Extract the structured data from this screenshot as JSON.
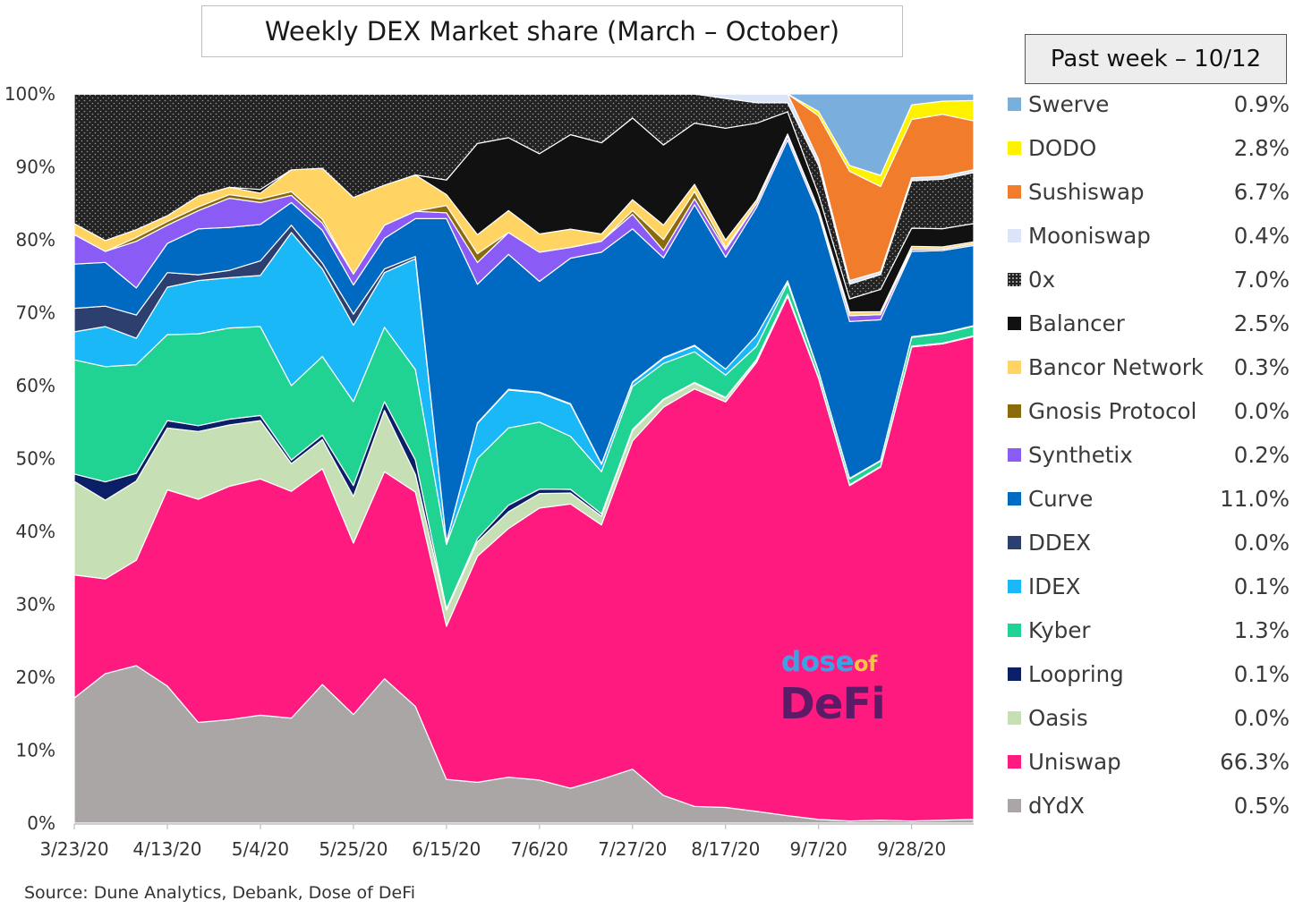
{
  "chart_data": {
    "type": "area",
    "stacked": true,
    "title": "Weekly DEX Market share (March – October)",
    "ylim": [
      0,
      100
    ],
    "y_ticks": [
      "0%",
      "10%",
      "20%",
      "30%",
      "40%",
      "50%",
      "60%",
      "70%",
      "80%",
      "90%",
      "100%"
    ],
    "x_tick_labels": [
      "3/23/20",
      "4/13/20",
      "5/4/20",
      "5/25/20",
      "6/15/20",
      "7/6/20",
      "7/27/20",
      "8/17/20",
      "9/7/20",
      "9/28/20"
    ],
    "x": [
      "3/23/20",
      "3/30/20",
      "4/6/20",
      "4/13/20",
      "4/20/20",
      "4/27/20",
      "5/4/20",
      "5/11/20",
      "5/18/20",
      "5/25/20",
      "6/1/20",
      "6/8/20",
      "6/15/20",
      "6/22/20",
      "6/29/20",
      "7/6/20",
      "7/13/20",
      "7/20/20",
      "7/27/20",
      "8/3/20",
      "8/10/20",
      "8/17/20",
      "8/24/20",
      "8/31/20",
      "9/7/20",
      "9/14/20",
      "9/21/20",
      "9/28/20",
      "10/5/20",
      "10/12/20"
    ],
    "series": [
      {
        "name": "dYdX",
        "color": "#aaa6a6",
        "values": [
          17.0,
          20.5,
          20.3,
          18.8,
          13.8,
          14.2,
          14.8,
          14.4,
          19.0,
          14.9,
          19.8,
          16.0,
          6.0,
          5.6,
          6.3,
          5.9,
          4.8,
          6.0,
          7.4,
          3.8,
          2.3,
          2.1,
          1.6,
          1.0,
          0.5,
          0.3,
          0.4,
          0.3,
          0.4,
          0.5
        ]
      },
      {
        "name": "Uniswap",
        "color": "#ff1a7f",
        "values": [
          16.7,
          13.0,
          13.6,
          26.9,
          30.6,
          32.0,
          32.4,
          31.1,
          29.6,
          23.5,
          28.4,
          29.4,
          21.0,
          31.0,
          34.1,
          37.3,
          39.1,
          34.9,
          45.0,
          53.3,
          57.3,
          54.4,
          61.4,
          70.0,
          60.5,
          46.0,
          47.7,
          65.0,
          65.4,
          66.3
        ]
      },
      {
        "name": "Oasis",
        "color": "#c6dfb4",
        "values": [
          12.7,
          10.8,
          10.2,
          8.5,
          9.3,
          8.4,
          8.0,
          3.8,
          4.0,
          6.4,
          8.4,
          2.4,
          2.2,
          2.0,
          2.3,
          2.0,
          1.5,
          1.2,
          1.4,
          1.0,
          0.8,
          0.5,
          0.3,
          0.2,
          0.0,
          0.0,
          0.0,
          0.0,
          0.0,
          0.0
        ]
      },
      {
        "name": "Loopring",
        "color": "#0a1f66",
        "values": [
          1.0,
          2.5,
          1.0,
          1.0,
          0.8,
          0.8,
          0.7,
          0.5,
          0.6,
          1.5,
          1.2,
          2.0,
          0.2,
          0.4,
          0.9,
          0.6,
          0.5,
          0.3,
          0.2,
          0.1,
          0.1,
          0.1,
          0.1,
          0.1,
          0.1,
          0.1,
          0.1,
          0.1,
          0.1,
          0.1
        ]
      },
      {
        "name": "Kyber",
        "color": "#21d393",
        "values": [
          15.5,
          15.8,
          14.0,
          11.8,
          12.6,
          12.5,
          12.2,
          10.2,
          10.8,
          11.5,
          10.2,
          12.4,
          8.8,
          11.0,
          10.6,
          9.2,
          7.3,
          5.8,
          5.9,
          4.9,
          4.2,
          3.0,
          1.8,
          1.5,
          0.8,
          0.8,
          0.7,
          1.2,
          1.3,
          1.3
        ]
      },
      {
        "name": "IDEX",
        "color": "#1ab8f7",
        "values": [
          3.8,
          5.5,
          3.4,
          6.5,
          7.3,
          6.9,
          7.0,
          21.0,
          12.0,
          10.5,
          7.5,
          15.2,
          0.3,
          4.8,
          5.2,
          4.0,
          4.4,
          1.0,
          0.5,
          0.7,
          0.8,
          0.8,
          1.5,
          0.3,
          0.1,
          0.1,
          0.1,
          0.1,
          0.1,
          0.1
        ]
      },
      {
        "name": "DDEX",
        "color": "#2c3f6e",
        "values": [
          3.2,
          2.8,
          3.0,
          2.0,
          0.8,
          1.0,
          2.0,
          1.0,
          0.8,
          1.5,
          0.5,
          0.3,
          0.1,
          0.1,
          0.1,
          0.1,
          0.1,
          0.1,
          0.1,
          0.1,
          0.1,
          0.0,
          0.0,
          0.0,
          0.0,
          0.0,
          0.0,
          0.0,
          0.0,
          0.0
        ]
      },
      {
        "name": "Curve",
        "color": "#0069c2",
        "values": [
          6.0,
          6.0,
          3.5,
          4.0,
          6.3,
          5.9,
          5.0,
          3.1,
          4.5,
          4.0,
          4.2,
          5.2,
          44.3,
          19.0,
          18.5,
          15.2,
          20.0,
          29.0,
          21.0,
          13.7,
          19.3,
          15.0,
          17.5,
          19.0,
          21.5,
          21.5,
          19.0,
          11.7,
          11.3,
          11.0
        ]
      },
      {
        "name": "Synthetix",
        "color": "#8a5cf5",
        "values": [
          4.0,
          1.5,
          6.0,
          2.5,
          2.5,
          4.0,
          3.0,
          1.0,
          1.0,
          1.5,
          1.8,
          1.0,
          0.8,
          3.0,
          3.0,
          4.0,
          1.5,
          1.5,
          2.0,
          1.0,
          0.8,
          1.0,
          0.5,
          0.5,
          0.5,
          0.8,
          0.7,
          0.3,
          0.2,
          0.2
        ]
      },
      {
        "name": "Gnosis Protocol",
        "color": "#8a6a0a",
        "values": [
          0.0,
          0.0,
          0.5,
          0.5,
          0.5,
          0.5,
          0.5,
          0.5,
          0.5,
          0.0,
          0.0,
          0.0,
          1.0,
          1.2,
          0.0,
          0.0,
          0.0,
          0.0,
          0.5,
          1.5,
          1.0,
          0.3,
          0.0,
          0.0,
          0.0,
          0.0,
          0.0,
          0.0,
          0.0,
          0.0
        ]
      },
      {
        "name": "Bancor Network",
        "color": "#ffd462",
        "values": [
          1.5,
          1.5,
          1.0,
          0.8,
          1.5,
          1.0,
          0.8,
          3.0,
          7.0,
          10.5,
          5.5,
          5.0,
          1.5,
          2.6,
          3.0,
          2.5,
          2.5,
          1.0,
          1.5,
          2.0,
          1.0,
          1.0,
          0.5,
          0.3,
          0.2,
          0.5,
          0.4,
          0.4,
          0.3,
          0.3
        ]
      },
      {
        "name": "Balancer",
        "color": "#111111",
        "values": [
          0.0,
          0.0,
          0.0,
          0.0,
          0.0,
          0.0,
          0.5,
          0.0,
          0.0,
          0.0,
          0.0,
          0.0,
          2.0,
          12.5,
          10.0,
          11.0,
          13.0,
          12.5,
          11.2,
          11.0,
          8.4,
          15.0,
          10.5,
          3.0,
          2.0,
          1.8,
          3.0,
          2.5,
          2.5,
          2.5
        ]
      },
      {
        "name": "0x",
        "color": "#222222",
        "values": [
          17.6,
          20.1,
          17.5,
          16.7,
          14.0,
          12.8,
          13.1,
          10.4,
          10.2,
          14.2,
          12.5,
          11.1,
          11.8,
          6.8,
          6.0,
          8.2,
          5.6,
          6.7,
          3.3,
          7.0,
          4.0,
          4.0,
          2.8,
          1.2,
          4.0,
          2.0,
          2.0,
          6.5,
          6.8,
          7.0
        ]
      },
      {
        "name": "Mooniswap",
        "color": "#dbe5f7",
        "values": [
          0.0,
          0.0,
          0.0,
          0.0,
          0.0,
          0.0,
          0.0,
          0.0,
          0.0,
          0.0,
          0.0,
          0.0,
          0.0,
          0.0,
          0.0,
          0.0,
          0.0,
          0.0,
          0.0,
          0.0,
          0.0,
          0.6,
          1.2,
          1.2,
          0.8,
          0.5,
          0.4,
          0.4,
          0.4,
          0.4
        ]
      },
      {
        "name": "Sushiswap",
        "color": "#f07c2c",
        "values": [
          0.0,
          0.0,
          0.0,
          0.0,
          0.0,
          0.0,
          0.0,
          0.0,
          0.0,
          0.0,
          0.0,
          0.0,
          0.0,
          0.0,
          0.0,
          0.0,
          0.0,
          0.0,
          0.0,
          0.0,
          0.0,
          0.0,
          0.0,
          0.0,
          6.0,
          15.0,
          11.5,
          8.0,
          8.5,
          6.7
        ]
      },
      {
        "name": "DODO",
        "color": "#fff200",
        "values": [
          0.0,
          0.0,
          0.0,
          0.0,
          0.0,
          0.0,
          0.0,
          0.0,
          0.0,
          0.0,
          0.0,
          0.0,
          0.0,
          0.0,
          0.0,
          0.0,
          0.0,
          0.0,
          0.0,
          0.0,
          0.0,
          0.0,
          0.0,
          0.0,
          0.6,
          0.8,
          1.5,
          2.0,
          1.8,
          2.8
        ]
      },
      {
        "name": "Swerve",
        "color": "#7aaedc",
        "values": [
          0.0,
          0.0,
          0.0,
          0.0,
          0.0,
          0.0,
          0.0,
          0.0,
          0.0,
          0.0,
          0.0,
          0.0,
          0.0,
          0.0,
          0.0,
          0.0,
          0.0,
          0.0,
          0.0,
          0.0,
          0.0,
          0.0,
          0.0,
          0.0,
          2.4,
          9.8,
          11.0,
          1.5,
          1.0,
          0.9
        ]
      }
    ]
  },
  "legend": {
    "header": "Past week – 10/12",
    "items": [
      {
        "name": "Swerve",
        "value": "0.9%",
        "color": "#7aaedc"
      },
      {
        "name": "DODO",
        "value": "2.8%",
        "color": "#fff200"
      },
      {
        "name": "Sushiswap",
        "value": "6.7%",
        "color": "#f07c2c"
      },
      {
        "name": "Mooniswap",
        "value": "0.4%",
        "color": "#dbe5f7"
      },
      {
        "name": "0x",
        "value": "7.0%",
        "color": "#222222"
      },
      {
        "name": "Balancer",
        "value": "2.5%",
        "color": "#111111"
      },
      {
        "name": "Bancor Network",
        "value": "0.3%",
        "color": "#ffd462"
      },
      {
        "name": "Gnosis Protocol",
        "value": "0.0%",
        "color": "#8a6a0a"
      },
      {
        "name": "Synthetix",
        "value": "0.2%",
        "color": "#8a5cf5"
      },
      {
        "name": "Curve",
        "value": "11.0%",
        "color": "#0069c2"
      },
      {
        "name": "DDEX",
        "value": "0.0%",
        "color": "#2c3f6e"
      },
      {
        "name": "IDEX",
        "value": "0.1%",
        "color": "#1ab8f7"
      },
      {
        "name": "Kyber",
        "value": "1.3%",
        "color": "#21d393"
      },
      {
        "name": "Loopring",
        "value": "0.1%",
        "color": "#0a1f66"
      },
      {
        "name": "Oasis",
        "value": "0.0%",
        "color": "#c6dfb4"
      },
      {
        "name": "Uniswap",
        "value": "66.3%",
        "color": "#ff1a7f"
      },
      {
        "name": "dYdX",
        "value": "0.5%",
        "color": "#aaa6a6"
      }
    ]
  },
  "source": "Source: Dune Analytics, Debank, Dose of DeFi",
  "logo": {
    "dose": "dose",
    "of": "of",
    "defi": "DeFi"
  }
}
